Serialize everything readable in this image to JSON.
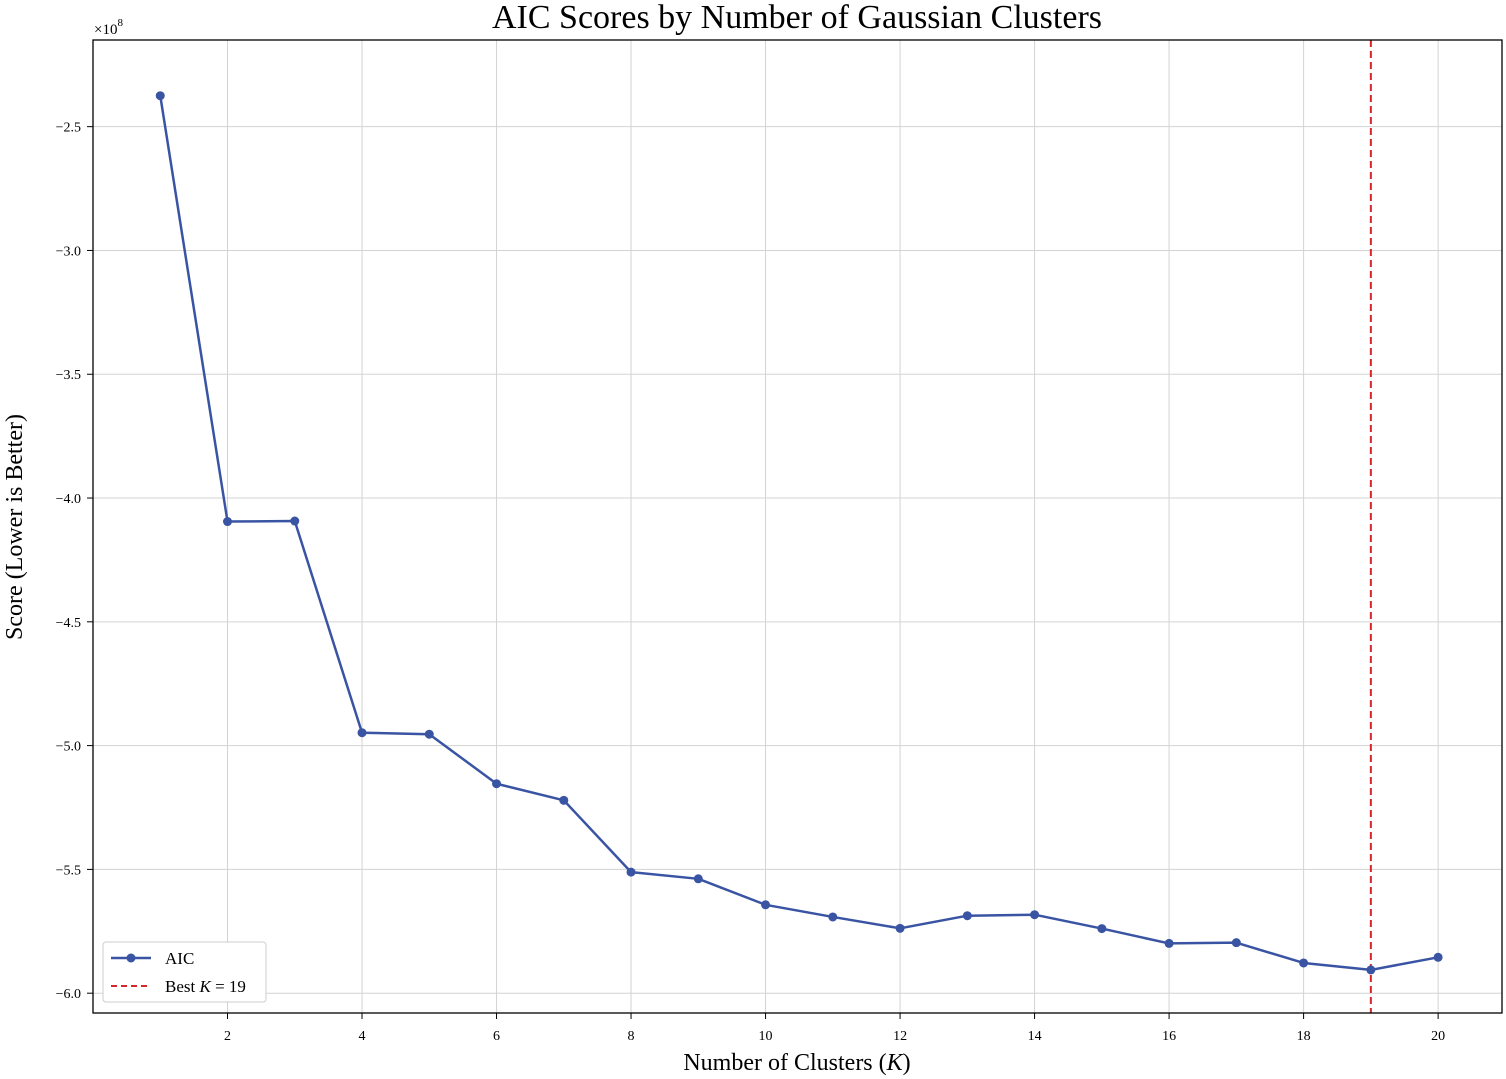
{
  "chart_data": {
    "type": "line",
    "title": "AIC Scores by Number of Gaussian Clusters",
    "xlabel_prefix": "Number of Clusters (",
    "xlabel_var": "K",
    "xlabel_suffix": ")",
    "ylabel": "Score (Lower is Better)",
    "y_multiplier_text": "×10",
    "y_multiplier_exp": "8",
    "xlim": [
      0.0,
      20.95
    ],
    "ylim": [
      -6.08,
      -2.15
    ],
    "x_ticks": [
      2,
      4,
      6,
      8,
      10,
      12,
      14,
      16,
      18,
      20
    ],
    "x_tick_labels": [
      "2",
      "4",
      "6",
      "8",
      "10",
      "12",
      "14",
      "16",
      "18",
      "20"
    ],
    "y_ticks": [
      -2.5,
      -3.0,
      -3.5,
      -4.0,
      -4.5,
      -5.0,
      -5.5,
      -6.0
    ],
    "y_tick_labels": [
      "−2.5",
      "−3.0",
      "−3.5",
      "−4.0",
      "−4.5",
      "−5.0",
      "−5.5",
      "−6.0"
    ],
    "grid": true,
    "legend_position": "bottom-left",
    "series": [
      {
        "name": "AIC",
        "color": "#3a54a4",
        "x": [
          1,
          2,
          3,
          4,
          5,
          6,
          7,
          8,
          9,
          10,
          11,
          12,
          13,
          14,
          15,
          16,
          17,
          18,
          19,
          20
        ],
        "values": [
          -2.375,
          -4.095,
          -4.093,
          -4.948,
          -4.954,
          -5.154,
          -5.221,
          -5.511,
          -5.538,
          -5.643,
          -5.692,
          -5.738,
          -5.687,
          -5.683,
          -5.739,
          -5.799,
          -5.796,
          -5.878,
          -5.906,
          -5.855
        ]
      }
    ],
    "best_line": {
      "x": 19,
      "color": "#d62728",
      "label_prefix": "Best ",
      "label_var": "K",
      "label_suffix": " = 19"
    }
  }
}
